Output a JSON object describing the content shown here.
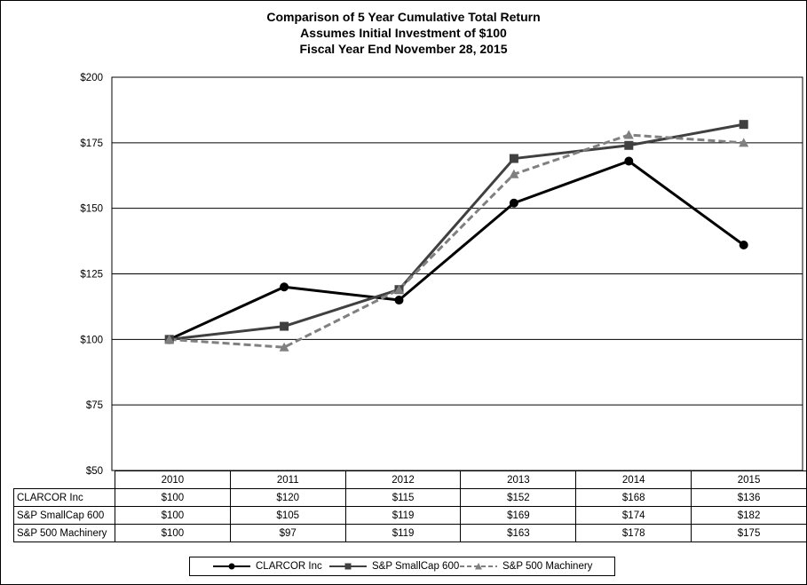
{
  "chart_data": {
    "type": "line",
    "title": [
      "Comparison of 5 Year Cumulative Total Return",
      "Assumes Initial Investment of $100",
      "Fiscal Year End November 28, 2015"
    ],
    "categories": [
      "2010",
      "2011",
      "2012",
      "2013",
      "2014",
      "2015"
    ],
    "ylim": [
      50,
      200
    ],
    "yticks": [
      {
        "value": 200,
        "label": "$200"
      },
      {
        "value": 175,
        "label": "$175"
      },
      {
        "value": 150,
        "label": "$150"
      },
      {
        "value": 125,
        "label": "$125"
      },
      {
        "value": 100,
        "label": "$100"
      },
      {
        "value": 75,
        "label": "$75"
      },
      {
        "value": 50,
        "label": "$50"
      }
    ],
    "series": [
      {
        "name": "CLARCOR Inc",
        "values": [
          100,
          120,
          115,
          152,
          168,
          136
        ],
        "labels": [
          "$100",
          "$120",
          "$115",
          "$152",
          "$168",
          "$136"
        ],
        "color": "#000000",
        "marker": "circle",
        "dash": "solid"
      },
      {
        "name": "S&P SmallCap 600",
        "values": [
          100,
          105,
          119,
          169,
          174,
          182
        ],
        "labels": [
          "$100",
          "$105",
          "$119",
          "$169",
          "$174",
          "$182"
        ],
        "color": "#404040",
        "marker": "square",
        "dash": "solid"
      },
      {
        "name": "S&P 500 Machinery",
        "values": [
          100,
          97,
          119,
          163,
          178,
          175
        ],
        "labels": [
          "$100",
          "$97",
          "$119",
          "$163",
          "$178",
          "$175"
        ],
        "color": "#808080",
        "marker": "triangle",
        "dash": "dashed"
      }
    ],
    "legend_position": "bottom",
    "grid": true
  }
}
